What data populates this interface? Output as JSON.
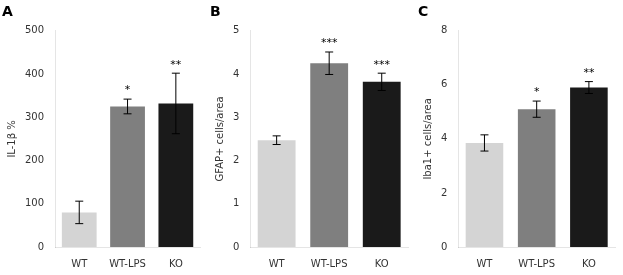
{
  "chart_data": [
    {
      "type": "bar",
      "title": "A",
      "ylabel": "IL-1β %",
      "categories": [
        "WT",
        "WT-LPS",
        "KO"
      ],
      "values": [
        80,
        325,
        332
      ],
      "errors": [
        26,
        17,
        70
      ],
      "colors": [
        "#d4d4d4",
        "#7f7f7f",
        "#1a1a1a"
      ],
      "ylim": [
        0,
        500
      ],
      "yticks": [
        0,
        100,
        200,
        300,
        400,
        500
      ],
      "grid": false,
      "annotations": [
        {
          "x": "WT-LPS",
          "text": "*"
        },
        {
          "x": "KO",
          "text": "**"
        }
      ]
    },
    {
      "type": "bar",
      "title": "B",
      "ylabel": "GFAP+ cells/area",
      "categories": [
        "WT",
        "WT-LPS",
        "KO"
      ],
      "values": [
        2.47,
        4.25,
        3.82
      ],
      "errors": [
        0.1,
        0.26,
        0.2
      ],
      "colors": [
        "#d4d4d4",
        "#7f7f7f",
        "#1a1a1a"
      ],
      "ylim": [
        0,
        5
      ],
      "yticks": [
        0,
        1,
        2,
        3,
        4,
        5
      ],
      "grid": false,
      "annotations": [
        {
          "x": "WT-LPS",
          "text": "***"
        },
        {
          "x": "KO",
          "text": "***"
        }
      ]
    },
    {
      "type": "bar",
      "title": "C",
      "ylabel": "Iba1+ cells/area",
      "categories": [
        "WT",
        "WT-LPS",
        "KO"
      ],
      "values": [
        3.85,
        5.1,
        5.9
      ],
      "errors": [
        0.3,
        0.3,
        0.22
      ],
      "colors": [
        "#d4d4d4",
        "#7f7f7f",
        "#1a1a1a"
      ],
      "ylim": [
        0,
        8
      ],
      "yticks": [
        0,
        2,
        4,
        6,
        8
      ],
      "grid": false,
      "annotations": [
        {
          "x": "WT-LPS",
          "text": "*"
        },
        {
          "x": "KO",
          "text": "**"
        }
      ]
    }
  ]
}
